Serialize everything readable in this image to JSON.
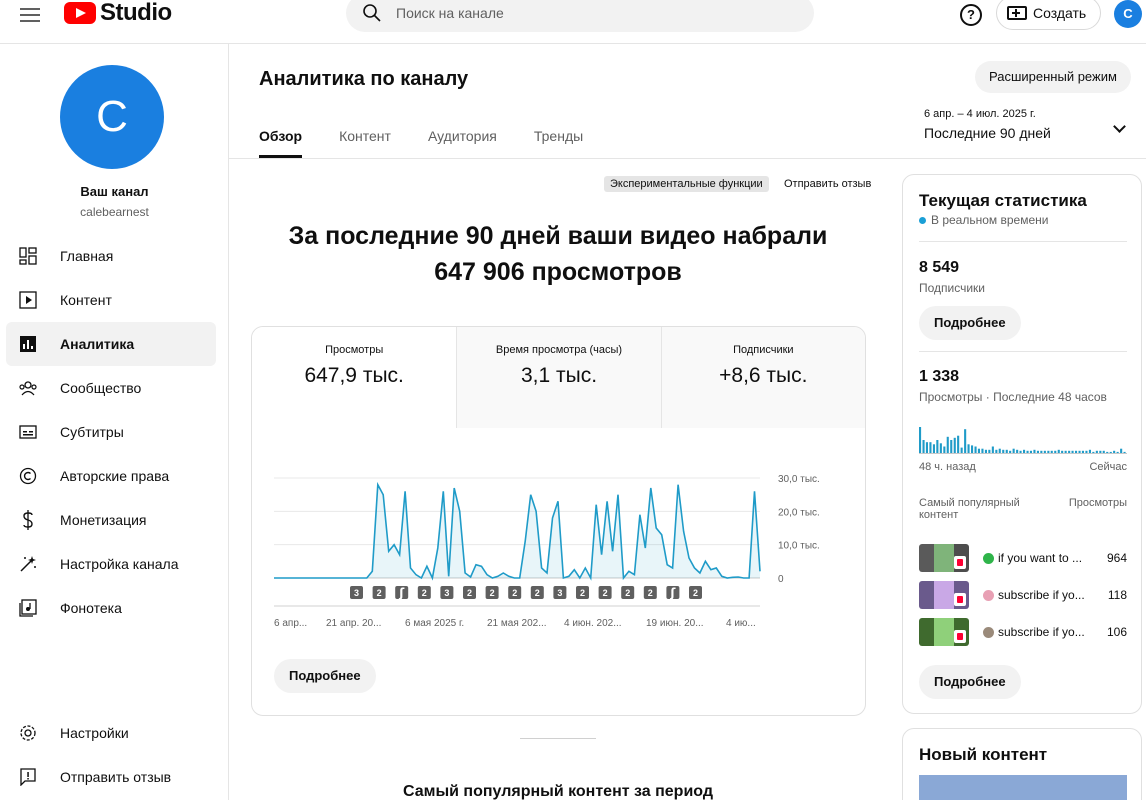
{
  "header": {
    "logo_text": "Studio",
    "search_placeholder": "Поиск на канале",
    "help_label": "?",
    "create_label": "Создать",
    "avatar_letter": "C"
  },
  "sidebar": {
    "avatar_letter": "C",
    "channel_title": "Ваш канал",
    "channel_handle": "calebearnest",
    "items": [
      {
        "label": "Главная",
        "icon": "dashboard-icon"
      },
      {
        "label": "Контент",
        "icon": "content-icon"
      },
      {
        "label": "Аналитика",
        "icon": "analytics-icon",
        "active": true
      },
      {
        "label": "Сообщество",
        "icon": "community-icon"
      },
      {
        "label": "Субтитры",
        "icon": "subtitles-icon"
      },
      {
        "label": "Авторские права",
        "icon": "copyright-icon"
      },
      {
        "label": "Монетизация",
        "icon": "monetization-icon"
      },
      {
        "label": "Настройка канала",
        "icon": "customization-icon"
      },
      {
        "label": "Фонотека",
        "icon": "audio-library-icon"
      }
    ],
    "bottom_items": [
      {
        "label": "Настройки",
        "icon": "settings-icon"
      },
      {
        "label": "Отправить отзыв",
        "icon": "feedback-icon"
      }
    ]
  },
  "main": {
    "title": "Аналитика по каналу",
    "advanced_mode": "Расширенный режим",
    "tabs": [
      {
        "label": "Обзор",
        "active": true
      },
      {
        "label": "Контент"
      },
      {
        "label": "Аудитория"
      },
      {
        "label": "Тренды"
      }
    ],
    "date_range_small": "6 апр. – 4 июл. 2025 г.",
    "date_range_label": "Последние 90 дней",
    "experimental_badge": "Экспериментальные функции",
    "send_feedback": "Отправить отзыв",
    "headline_line1": "За последние 90 дней ваши видео набрали",
    "headline_line2": "647 906 просмотров",
    "metrics": [
      {
        "label": "Просмотры",
        "value": "647,9 тыс."
      },
      {
        "label": "Время просмотра (часы)",
        "value": "3,1 тыс."
      },
      {
        "label": "Подписчики",
        "value": "+8,6 тыс."
      }
    ],
    "more_button": "Подробнее",
    "top_content_title": "Самый популярный контент за период"
  },
  "chart_data": {
    "type": "area",
    "series": [
      {
        "values": [
          0,
          0,
          0,
          0,
          0,
          0,
          0,
          0,
          0,
          0,
          0,
          0,
          0,
          0,
          0,
          0,
          0,
          0,
          0,
          0,
          0,
          0,
          0,
          0,
          0,
          0,
          0,
          0,
          0,
          0,
          0,
          0,
          0,
          0,
          0,
          0,
          0,
          0,
          0,
          0,
          0,
          0,
          0,
          0,
          0,
          0,
          0,
          0,
          0,
          0,
          0,
          0,
          0,
          0,
          0,
          0,
          0,
          0,
          0,
          0,
          0,
          0,
          0,
          0,
          0,
          0,
          0,
          0,
          0,
          0,
          0,
          0,
          0,
          0,
          0,
          0,
          0,
          0,
          0,
          0,
          0,
          0,
          0,
          0,
          0,
          0,
          0,
          0,
          0,
          0,
          0
        ]
      }
    ],
    "x_start": "2025-04-06",
    "x_end": "2025-07-04",
    "daily_values": [
      0,
      0,
      0,
      0,
      0,
      0,
      0,
      0,
      0,
      0,
      0,
      0,
      0,
      0,
      0,
      0,
      0,
      0,
      2000,
      28000,
      25000,
      8000,
      10000,
      7000,
      26000,
      3000,
      1000,
      0,
      3500,
      0,
      9000,
      26000,
      500,
      27000,
      20000,
      1500,
      300,
      4000,
      3500,
      1000,
      0,
      500,
      1500,
      500,
      0,
      0,
      11000,
      25000,
      20000,
      3000,
      1500,
      18000,
      23000,
      0,
      500,
      2500,
      0,
      3000,
      0,
      22000,
      7000,
      23000,
      8000,
      25000,
      0,
      2000,
      1000,
      19000,
      9000,
      27000,
      15000,
      13000,
      4000,
      3000,
      28000,
      14000,
      6000,
      3000,
      1500,
      5000,
      2500,
      3000,
      500,
      0,
      200,
      300,
      0,
      0,
      26000,
      2000
    ],
    "y_ticks": [
      "30,0 тыс.",
      "20,0 тыс.",
      "10,0 тыс.",
      "0"
    ],
    "ylim": [
      0,
      30000
    ],
    "x_tick_labels": [
      "6 апр...",
      "21 апр. 20...",
      "6 мая 2025 г.",
      "21 мая 202...",
      "4 июн. 202...",
      "19 июн. 20...",
      "4 ию..."
    ],
    "upload_markers": [
      "3",
      "2",
      "short",
      "2",
      "3",
      "2",
      "2",
      "2",
      "2",
      "3",
      "2",
      "2",
      "2",
      "2",
      "short",
      "2"
    ],
    "grid": true,
    "color": "#1f9bc8"
  },
  "realtime": {
    "title": "Текущая статистика",
    "subtitle": "В реальном времени",
    "subscribers_value": "8 549",
    "subscribers_label": "Подписчики",
    "more_button": "Подробнее",
    "views_value": "1 338",
    "views_label": "Просмотры · Последние 48 часов",
    "mini_chart_values": [
      24,
      12,
      10,
      10,
      8,
      12,
      9,
      6,
      15,
      12,
      14,
      16,
      5,
      22,
      8,
      7,
      6,
      4,
      4,
      3,
      3,
      6,
      3,
      4,
      3,
      3,
      2,
      4,
      3,
      2,
      3,
      2,
      2,
      3,
      2,
      2,
      2,
      2,
      2,
      2,
      3,
      2,
      2,
      2,
      2,
      2,
      2,
      2,
      2,
      3,
      1,
      2,
      2,
      2,
      1,
      1,
      2,
      1,
      4,
      1
    ],
    "axis_left": "48 ч. назад",
    "axis_right": "Сейчас",
    "top_header_left": "Самый популярный контент",
    "top_header_right": "Просмотры",
    "top_items": [
      {
        "title": "if you want to ...",
        "views": "964",
        "icon_color": "#2fb44a"
      },
      {
        "title": "subscribe if yo...",
        "views": "118",
        "icon_color": "#e8a0b4"
      },
      {
        "title": "subscribe if yo...",
        "views": "106",
        "icon_color": "#9a8a7a"
      }
    ],
    "more_button2": "Подробнее"
  },
  "new_content": {
    "title": "Новый контент"
  },
  "colors": {
    "accent": "#1a7fe0",
    "brand_red": "#ff0000",
    "chart_line": "#1f9bc8"
  }
}
